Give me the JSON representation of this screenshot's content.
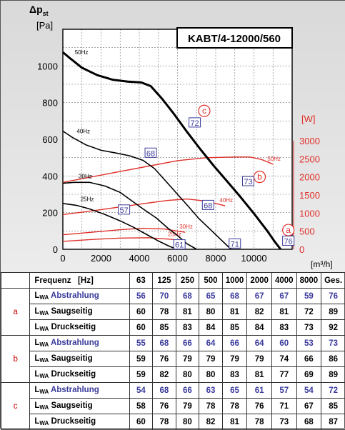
{
  "chart_data": {
    "type": "line",
    "title": "KABT/4-12000/560",
    "y_label_symbol": "Δp",
    "y_label_sub": "st",
    "ylabel_unit": "[Pa]",
    "y2label_unit": "[W]",
    "xlabel_unit": "[m³/h]",
    "xlim": [
      0,
      12000
    ],
    "ylim": [
      0,
      1200
    ],
    "y2lim": [
      0,
      3000
    ],
    "x_ticks": [
      "0",
      "2000",
      "4000",
      "6000",
      "8000",
      "10000"
    ],
    "y_ticks": [
      "0",
      "200",
      "400",
      "600",
      "800",
      "1000"
    ],
    "y2_ticks": [
      "0",
      "500",
      "1000",
      "1500",
      "2000",
      "2500",
      "3000"
    ],
    "grid": true,
    "pressure_series": [
      {
        "name": "50Hz",
        "x": [
          0,
          400,
          1000,
          1800,
          2600,
          3400,
          4100,
          4600,
          5200,
          5800,
          6500,
          7200,
          7900,
          8600,
          9300,
          10000,
          10700,
          11100,
          11400
        ],
        "y": [
          1075,
          1040,
          990,
          950,
          925,
          915,
          910,
          890,
          820,
          740,
          640,
          545,
          455,
          370,
          285,
          195,
          100,
          40,
          0
        ]
      },
      {
        "name": "40Hz",
        "x": [
          0,
          500,
          1200,
          2000,
          2800,
          3500,
          4200,
          4800,
          5400,
          6000,
          6600,
          7100,
          7700,
          8300,
          8800
        ],
        "y": [
          645,
          610,
          570,
          540,
          525,
          510,
          485,
          440,
          370,
          300,
          230,
          170,
          110,
          50,
          0
        ]
      },
      {
        "name": "30Hz",
        "x": [
          0,
          600,
          1400,
          2200,
          3000,
          3600,
          4200,
          4900,
          5500,
          6000,
          6500,
          7000
        ],
        "y": [
          360,
          365,
          365,
          345,
          310,
          265,
          220,
          170,
          115,
          75,
          30,
          0
        ]
      },
      {
        "name": "25Hz",
        "x": [
          0,
          700,
          1400,
          2200,
          3000,
          3700,
          4400,
          5000,
          5600,
          6000
        ],
        "y": [
          250,
          240,
          220,
          190,
          155,
          120,
          80,
          45,
          15,
          0
        ]
      }
    ],
    "power_series": [
      {
        "name": "50Hz",
        "x": [
          0,
          1500,
          3000,
          4500,
          6000,
          7500,
          9000,
          9800,
          10400,
          11000
        ],
        "y": [
          1850,
          2000,
          2150,
          2300,
          2450,
          2530,
          2550,
          2550,
          2480,
          2350
        ]
      },
      {
        "name": "40Hz",
        "x": [
          0,
          1500,
          3000,
          4500,
          5500,
          6500,
          7500,
          8500
        ],
        "y": [
          960,
          1060,
          1170,
          1280,
          1350,
          1390,
          1330,
          1200
        ]
      },
      {
        "name": "30Hz",
        "x": [
          0,
          1500,
          3000,
          4200,
          5300,
          6400
        ],
        "y": [
          400,
          470,
          540,
          580,
          560,
          470
        ]
      },
      {
        "name": "25Hz",
        "x": [
          0,
          1500,
          3000,
          4500,
          5800
        ],
        "y": [
          220,
          270,
          310,
          320,
          270
        ]
      }
    ],
    "point_labels": [
      {
        "text": "c",
        "x": 7400,
        "y": 755,
        "style": "circle"
      },
      {
        "text": "72",
        "x": 6900,
        "y": 690,
        "style": "box"
      },
      {
        "text": "68",
        "x": 4600,
        "y": 525,
        "style": "box"
      },
      {
        "text": "b",
        "x": 10300,
        "y": 395,
        "style": "circle"
      },
      {
        "text": "73",
        "x": 9700,
        "y": 370,
        "style": "box"
      },
      {
        "text": "68",
        "x": 7600,
        "y": 240,
        "style": "box"
      },
      {
        "text": "57",
        "x": 3200,
        "y": 215,
        "style": "box"
      },
      {
        "text": "a",
        "x": 11800,
        "y": 105,
        "style": "circle"
      },
      {
        "text": "76",
        "x": 11800,
        "y": 45,
        "style": "box"
      },
      {
        "text": "71",
        "x": 9000,
        "y": 30,
        "style": "box"
      },
      {
        "text": "61",
        "x": 6100,
        "y": 25,
        "style": "box"
      }
    ]
  },
  "table": {
    "header": {
      "label": "Frequenz",
      "unit": "[Hz]",
      "bands": [
        "63",
        "125",
        "250",
        "500",
        "1000",
        "2000",
        "4000",
        "8000",
        "Ges."
      ]
    },
    "groups": [
      {
        "id": "a",
        "rows": [
          {
            "prefix": "L",
            "sub": "WA",
            "name": "Abstrahlung",
            "values": [
              "56",
              "70",
              "68",
              "65",
              "68",
              "67",
              "67",
              "59",
              "76"
            ]
          },
          {
            "prefix": "L",
            "sub": "WA",
            "name": "Saugseitig",
            "values": [
              "60",
              "78",
              "81",
              "80",
              "81",
              "82",
              "81",
              "72",
              "89"
            ]
          },
          {
            "prefix": "L",
            "sub": "WA",
            "name": "Druckseitig",
            "values": [
              "60",
              "85",
              "83",
              "84",
              "85",
              "84",
              "83",
              "73",
              "92"
            ]
          }
        ]
      },
      {
        "id": "b",
        "rows": [
          {
            "prefix": "L",
            "sub": "WA",
            "name": "Abstrahlung",
            "values": [
              "55",
              "68",
              "66",
              "64",
              "66",
              "64",
              "60",
              "53",
              "73"
            ]
          },
          {
            "prefix": "L",
            "sub": "WA",
            "name": "Saugseitig",
            "values": [
              "59",
              "76",
              "79",
              "79",
              "79",
              "79",
              "74",
              "66",
              "86"
            ]
          },
          {
            "prefix": "L",
            "sub": "WA",
            "name": "Druckseitig",
            "values": [
              "59",
              "82",
              "80",
              "80",
              "83",
              "81",
              "77",
              "69",
              "89"
            ]
          }
        ]
      },
      {
        "id": "c",
        "rows": [
          {
            "prefix": "L",
            "sub": "WA",
            "name": "Abstrahlung",
            "values": [
              "54",
              "68",
              "66",
              "63",
              "65",
              "61",
              "57",
              "54",
              "72"
            ]
          },
          {
            "prefix": "L",
            "sub": "WA",
            "name": "Saugseitig",
            "values": [
              "58",
              "76",
              "79",
              "78",
              "78",
              "76",
              "71",
              "67",
              "85"
            ]
          },
          {
            "prefix": "L",
            "sub": "WA",
            "name": "Druckseitig",
            "values": [
              "60",
              "78",
              "80",
              "82",
              "81",
              "78",
              "73",
              "68",
              "87"
            ]
          }
        ]
      }
    ]
  },
  "colors": {
    "pressure": "#000000",
    "power": "#e0302a",
    "label_box": "#3b3b9c",
    "grid": "#777777"
  }
}
